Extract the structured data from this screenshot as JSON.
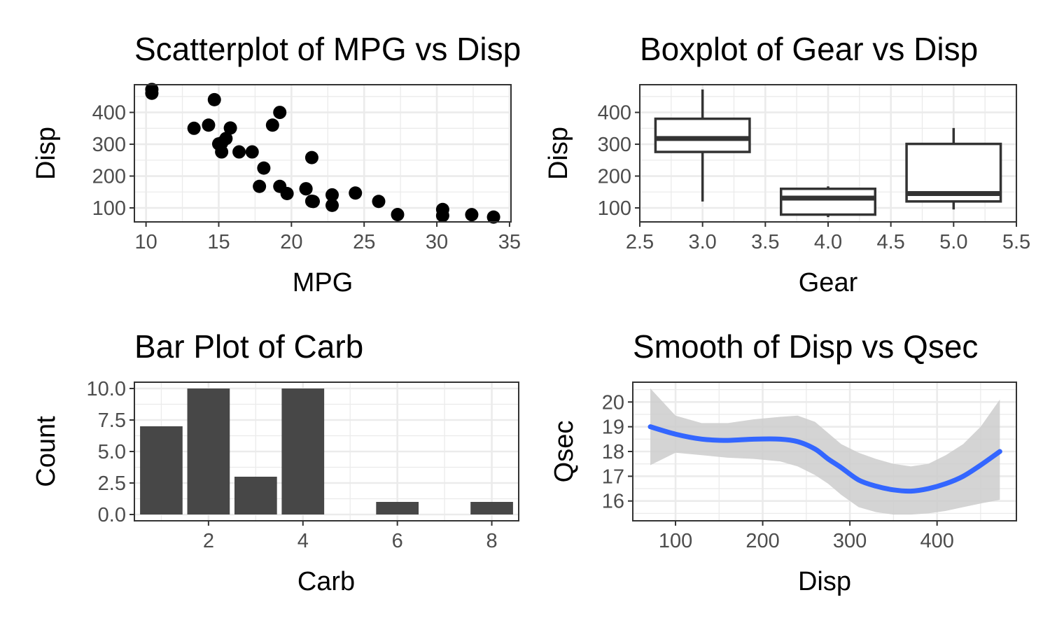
{
  "chart_data": [
    {
      "type": "scatter",
      "title": "Scatterplot of MPG vs Disp",
      "xlabel": "MPG",
      "ylabel": "Disp",
      "xlim": [
        9.2,
        35.1
      ],
      "ylim": [
        56,
        487
      ],
      "xticks": [
        10,
        15,
        20,
        25,
        30,
        35
      ],
      "yticks": [
        100,
        200,
        300,
        400
      ],
      "grid": true,
      "points": [
        {
          "x": 21.0,
          "y": 160
        },
        {
          "x": 21.0,
          "y": 160
        },
        {
          "x": 22.8,
          "y": 108
        },
        {
          "x": 21.4,
          "y": 258
        },
        {
          "x": 18.7,
          "y": 360
        },
        {
          "x": 18.1,
          "y": 225
        },
        {
          "x": 14.3,
          "y": 360
        },
        {
          "x": 24.4,
          "y": 146.7
        },
        {
          "x": 22.8,
          "y": 140.8
        },
        {
          "x": 19.2,
          "y": 167.6
        },
        {
          "x": 17.8,
          "y": 167.6
        },
        {
          "x": 16.4,
          "y": 275.8
        },
        {
          "x": 17.3,
          "y": 275.8
        },
        {
          "x": 15.2,
          "y": 275.8
        },
        {
          "x": 10.4,
          "y": 472
        },
        {
          "x": 10.4,
          "y": 460
        },
        {
          "x": 14.7,
          "y": 440
        },
        {
          "x": 32.4,
          "y": 78.7
        },
        {
          "x": 30.4,
          "y": 75.7
        },
        {
          "x": 33.9,
          "y": 71.1
        },
        {
          "x": 21.5,
          "y": 120.1
        },
        {
          "x": 15.5,
          "y": 318
        },
        {
          "x": 15.2,
          "y": 304
        },
        {
          "x": 13.3,
          "y": 350
        },
        {
          "x": 19.2,
          "y": 400
        },
        {
          "x": 27.3,
          "y": 79
        },
        {
          "x": 26.0,
          "y": 120.3
        },
        {
          "x": 30.4,
          "y": 95.1
        },
        {
          "x": 15.8,
          "y": 351
        },
        {
          "x": 19.7,
          "y": 145
        },
        {
          "x": 15.0,
          "y": 301
        },
        {
          "x": 21.4,
          "y": 121
        }
      ]
    },
    {
      "type": "boxplot",
      "title": "Boxplot of Gear vs Disp",
      "xlabel": "Gear",
      "ylabel": "Disp",
      "xlim": [
        2.5,
        5.5
      ],
      "ylim": [
        56,
        487
      ],
      "xticks": [
        "2.5",
        "3.0",
        "3.5",
        "4.0",
        "4.5",
        "5.0",
        "5.5"
      ],
      "yticks": [
        100,
        200,
        300,
        400
      ],
      "grid": true,
      "boxes": [
        {
          "x": 3,
          "min": 120.1,
          "q1": 275.8,
          "median": 318,
          "q3": 380,
          "max": 472
        },
        {
          "x": 4,
          "min": 71.1,
          "q1": 78.9,
          "median": 130.9,
          "q3": 160,
          "max": 167.6
        },
        {
          "x": 5,
          "min": 95.1,
          "q1": 120.3,
          "median": 145,
          "q3": 301,
          "max": 351
        }
      ]
    },
    {
      "type": "bar",
      "title": "Bar Plot of Carb",
      "xlabel": "Carb",
      "ylabel": "Count",
      "xlim": [
        0.43,
        8.57
      ],
      "ylim": [
        -0.5,
        10.5
      ],
      "xticks": [
        2,
        4,
        6,
        8
      ],
      "yticks": [
        "0.0",
        "2.5",
        "5.0",
        "7.5",
        "10.0"
      ],
      "grid": true,
      "color": "#474747",
      "categories": [
        1,
        2,
        3,
        4,
        6,
        8
      ],
      "values": [
        7,
        10,
        3,
        10,
        1,
        1
      ]
    },
    {
      "type": "line",
      "title": "Smooth of Disp vs Qsec",
      "xlabel": "Disp",
      "ylabel": "Qsec",
      "xlim": [
        51,
        491
      ],
      "ylim": [
        15.2,
        20.8
      ],
      "xticks": [
        100,
        200,
        300,
        400
      ],
      "yticks": [
        16,
        17,
        18,
        19,
        20
      ],
      "grid": true,
      "line_color": "#3366ff",
      "band_color": "#cccccc",
      "x": [
        71.1,
        100,
        130,
        160,
        190,
        220,
        240,
        260,
        275,
        290,
        310,
        330,
        350,
        370,
        390,
        410,
        430,
        450,
        472
      ],
      "y": [
        19.0,
        18.7,
        18.5,
        18.45,
        18.5,
        18.5,
        18.4,
        18.1,
        17.7,
        17.35,
        16.85,
        16.6,
        16.45,
        16.4,
        16.5,
        16.7,
        17.0,
        17.45,
        18.0
      ],
      "lower": [
        17.45,
        17.95,
        17.85,
        17.75,
        17.7,
        17.6,
        17.4,
        17.05,
        16.7,
        16.25,
        15.75,
        15.55,
        15.45,
        15.45,
        15.5,
        15.6,
        15.75,
        15.9,
        16.05
      ],
      "upper": [
        20.55,
        19.45,
        19.15,
        19.15,
        19.3,
        19.4,
        19.45,
        19.2,
        18.75,
        18.3,
        17.95,
        17.7,
        17.5,
        17.4,
        17.5,
        17.85,
        18.3,
        19.0,
        20.1
      ]
    }
  ]
}
